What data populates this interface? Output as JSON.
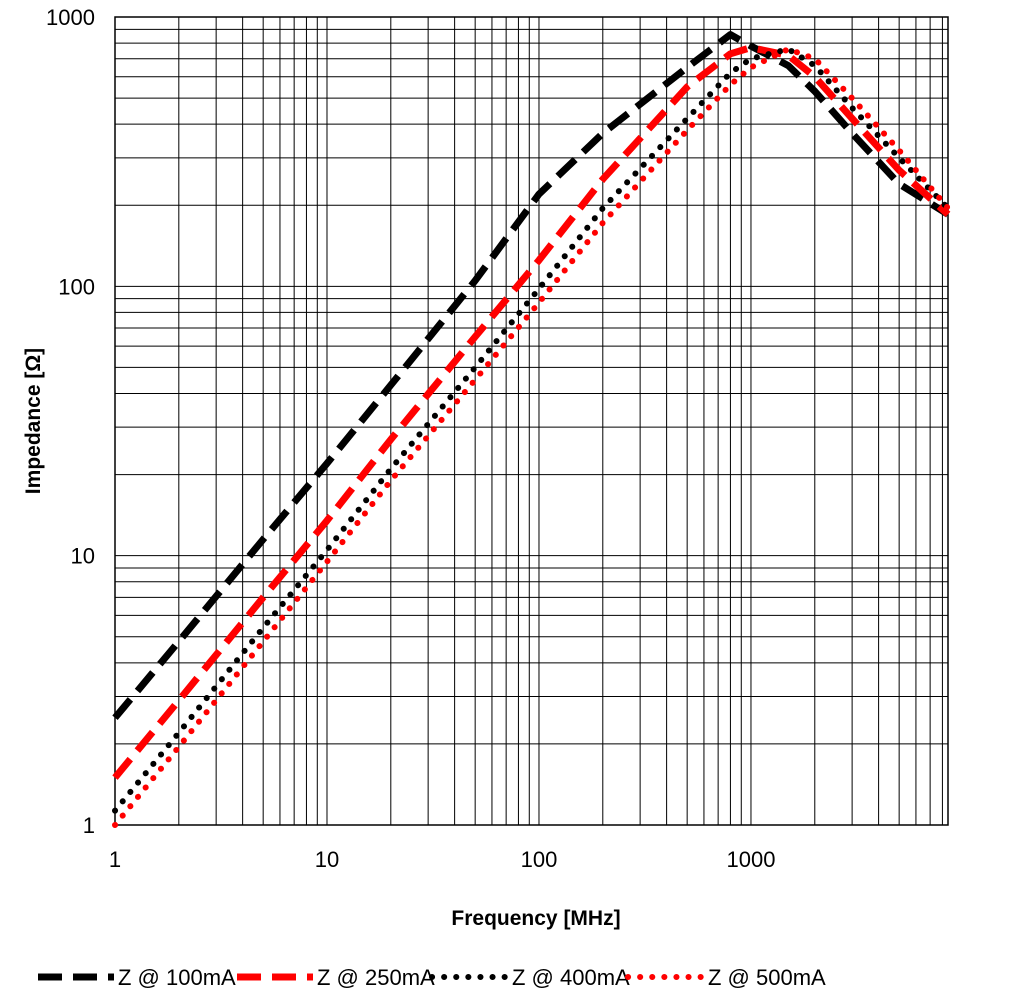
{
  "chart_data": {
    "type": "line",
    "xlabel": "Frequency [MHz]",
    "ylabel": "Impedance [Ω]",
    "x_scale": "log",
    "y_scale": "log",
    "xlim": [
      1,
      8500
    ],
    "ylim": [
      1,
      1000
    ],
    "x_ticks": [
      {
        "value": 1,
        "label": "1"
      },
      {
        "value": 10,
        "label": "10"
      },
      {
        "value": 100,
        "label": "100"
      },
      {
        "value": 1000,
        "label": "1000"
      }
    ],
    "y_ticks": [
      {
        "value": 1,
        "label": "1"
      },
      {
        "value": 10,
        "label": "10"
      },
      {
        "value": 100,
        "label": "100"
      },
      {
        "value": 1000,
        "label": "1000"
      }
    ],
    "grid": true,
    "legend_position": "bottom",
    "series": [
      {
        "name": "Z @ 100mA",
        "color": "#000000",
        "style": "dashed",
        "points": [
          [
            1,
            2.5
          ],
          [
            2,
            4.8
          ],
          [
            5,
            11.5
          ],
          [
            10,
            22
          ],
          [
            20,
            43
          ],
          [
            50,
            105
          ],
          [
            100,
            220
          ],
          [
            200,
            370
          ],
          [
            500,
            650
          ],
          [
            800,
            860
          ],
          [
            1000,
            780
          ],
          [
            1500,
            660
          ],
          [
            2000,
            530
          ],
          [
            3000,
            370
          ],
          [
            5000,
            240
          ],
          [
            8500,
            185
          ]
        ]
      },
      {
        "name": "Z @ 250mA",
        "color": "#ff0000",
        "style": "dashed",
        "points": [
          [
            1,
            1.5
          ],
          [
            2,
            2.9
          ],
          [
            5,
            7
          ],
          [
            10,
            13.5
          ],
          [
            20,
            27
          ],
          [
            50,
            65
          ],
          [
            100,
            125
          ],
          [
            200,
            250
          ],
          [
            500,
            550
          ],
          [
            800,
            730
          ],
          [
            1000,
            770
          ],
          [
            1500,
            720
          ],
          [
            2000,
            600
          ],
          [
            3000,
            420
          ],
          [
            5000,
            270
          ],
          [
            8500,
            185
          ]
        ]
      },
      {
        "name": "Z @ 400mA",
        "color": "#000000",
        "style": "dotted",
        "points": [
          [
            1,
            1.13
          ],
          [
            2,
            2.2
          ],
          [
            5,
            5.4
          ],
          [
            10,
            10.5
          ],
          [
            20,
            21
          ],
          [
            50,
            50
          ],
          [
            100,
            98
          ],
          [
            200,
            195
          ],
          [
            500,
            420
          ],
          [
            800,
            620
          ],
          [
            1000,
            700
          ],
          [
            1500,
            760
          ],
          [
            2000,
            660
          ],
          [
            3000,
            460
          ],
          [
            5000,
            300
          ],
          [
            8500,
            195
          ]
        ]
      },
      {
        "name": "Z @ 500mA",
        "color": "#ff0000",
        "style": "dotted",
        "points": [
          [
            1,
            1.0
          ],
          [
            2,
            1.95
          ],
          [
            5,
            4.8
          ],
          [
            10,
            9.5
          ],
          [
            20,
            19
          ],
          [
            50,
            45
          ],
          [
            100,
            87
          ],
          [
            200,
            172
          ],
          [
            500,
            380
          ],
          [
            800,
            560
          ],
          [
            1000,
            650
          ],
          [
            1500,
            760
          ],
          [
            2000,
            700
          ],
          [
            3000,
            500
          ],
          [
            5000,
            320
          ],
          [
            8500,
            195
          ]
        ]
      }
    ]
  }
}
